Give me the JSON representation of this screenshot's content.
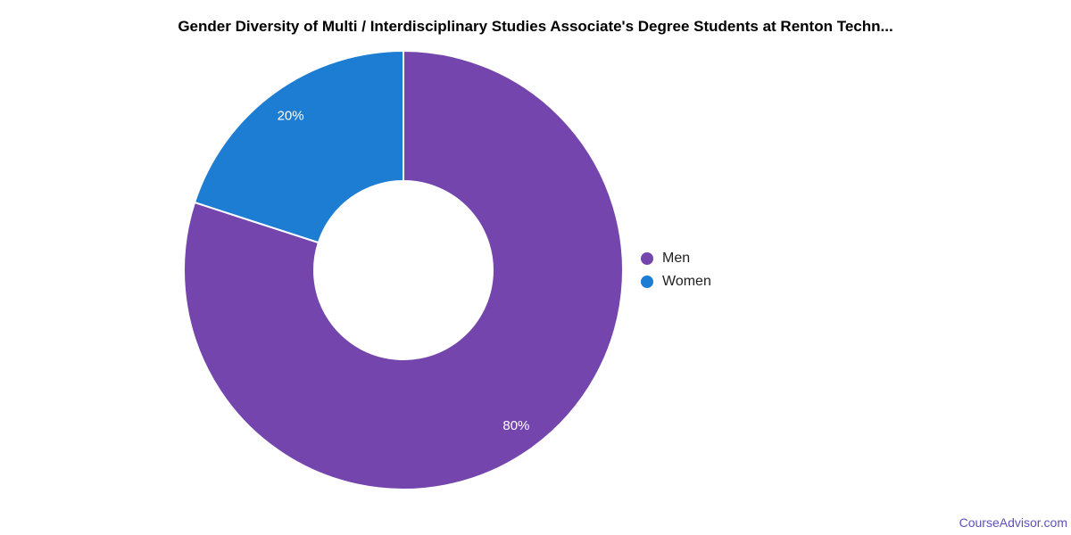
{
  "chart_data": {
    "type": "pie",
    "donut": true,
    "title": "Gender Diversity of Multi / Interdisciplinary Studies Associate's Degree Students at Renton Techn...",
    "start_angle_deg": 0,
    "direction": "clockwise",
    "legend_position": "right",
    "slice_label_format": "percent",
    "slice_label_color": "#ffffff",
    "separator_color": "#ffffff",
    "background_color": "#ffffff",
    "slices": [
      {
        "label": "Men",
        "value": 80,
        "display": "80%",
        "color": "#7446ad"
      },
      {
        "label": "Women",
        "value": 20,
        "display": "20%",
        "color": "#1d7dd2"
      }
    ]
  },
  "footer": {
    "link_text": "CourseAdvisor.com",
    "link_color": "#5d52b8"
  }
}
